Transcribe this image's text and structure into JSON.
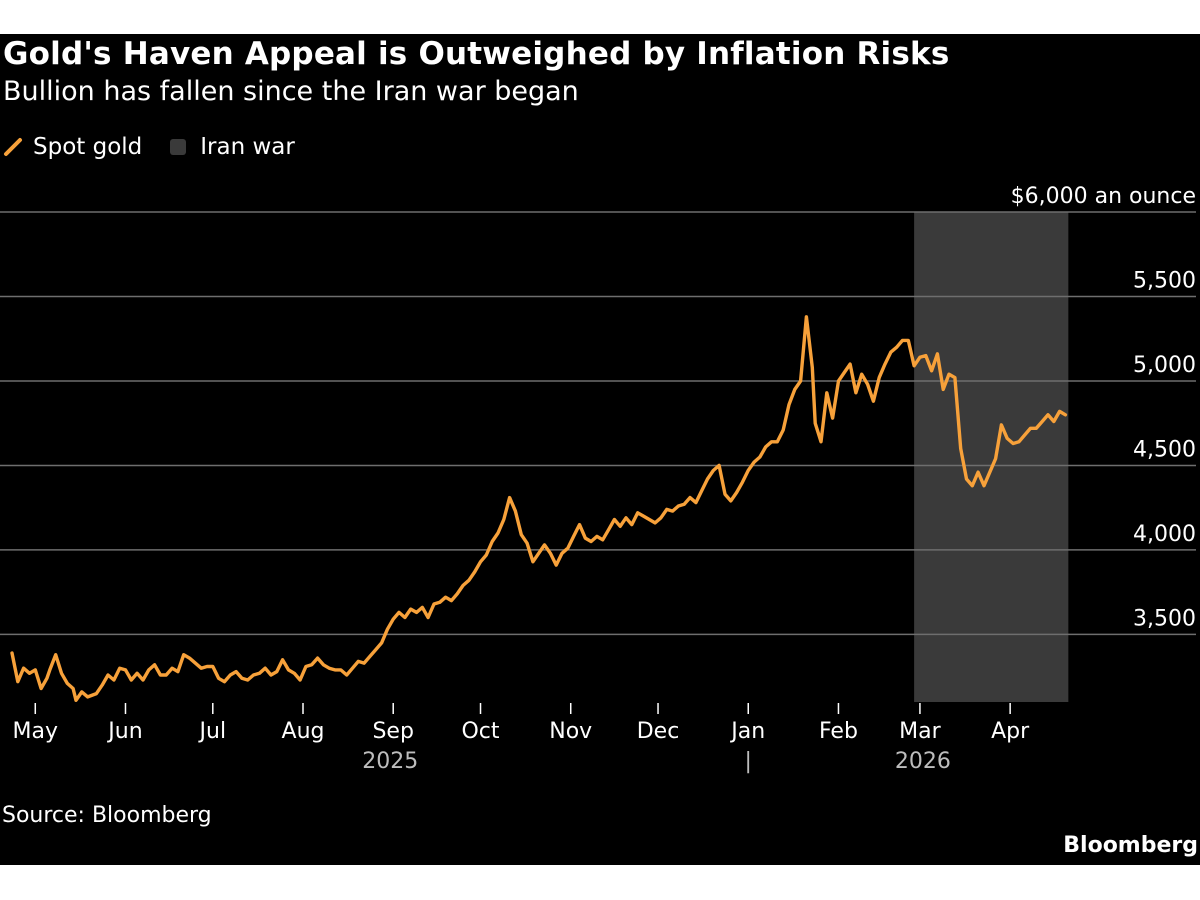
{
  "colors": {
    "background": "#000000",
    "series": "#f7a13a",
    "shade": "#3a3a3a",
    "grid": "#6e6e6e",
    "text": "#ffffff",
    "muted_text": "#bdbdbd"
  },
  "chart_data": {
    "type": "line",
    "title": "Gold's Haven Appeal is Outweighed by Inflation Risks",
    "subtitle": "Bullion has fallen since the Iran war began",
    "xlabel": "",
    "ylabel": "$6,000 an ounce",
    "ylim": [
      3100,
      6000
    ],
    "y_ticks": [
      {
        "value": 3500,
        "label": "3,500"
      },
      {
        "value": 4000,
        "label": "4,000"
      },
      {
        "value": 4500,
        "label": "4,500"
      },
      {
        "value": 5000,
        "label": "5,000"
      },
      {
        "value": 5500,
        "label": "5,500"
      },
      {
        "value": 6000,
        "label": "$6,000 an ounce"
      }
    ],
    "grid": true,
    "legend": {
      "placement": "top-left",
      "entries": [
        {
          "name": "Spot gold",
          "kind": "line"
        },
        {
          "name": "Iran war",
          "kind": "area"
        }
      ]
    },
    "x_domain": [
      -8,
      370
    ],
    "x_ticks": [
      {
        "day": 0,
        "label": "May"
      },
      {
        "day": 31,
        "label": "Jun"
      },
      {
        "day": 61,
        "label": "Jul"
      },
      {
        "day": 92,
        "label": "Aug"
      },
      {
        "day": 123,
        "label": "Sep"
      },
      {
        "day": 153,
        "label": "Oct"
      },
      {
        "day": 184,
        "label": "Nov"
      },
      {
        "day": 214,
        "label": "Dec"
      },
      {
        "day": 245,
        "label": "Jan"
      },
      {
        "day": 276,
        "label": "Feb"
      },
      {
        "day": 304,
        "label": "Mar"
      },
      {
        "day": 335,
        "label": "Apr"
      }
    ],
    "year_labels": [
      {
        "day": 122,
        "label": "2025"
      },
      {
        "day": 245,
        "label": "|"
      },
      {
        "day": 305,
        "label": "2026"
      }
    ],
    "shaded_regions": [
      {
        "name": "Iran war",
        "start_day": 302,
        "end_day": 355
      }
    ],
    "series": [
      {
        "name": "Spot gold",
        "x": [
          -8,
          -6,
          -4,
          -2,
          0,
          2,
          4,
          5,
          7,
          9,
          11,
          13,
          14,
          16,
          18,
          21,
          23,
          25,
          27,
          29,
          31,
          33,
          35,
          37,
          39,
          41,
          43,
          45,
          47,
          49,
          51,
          53,
          55,
          57,
          59,
          61,
          63,
          65,
          67,
          69,
          71,
          73,
          75,
          77,
          79,
          81,
          83,
          85,
          87,
          89,
          91,
          93,
          95,
          97,
          99,
          101,
          103,
          105,
          107,
          109,
          111,
          113,
          115,
          117,
          119,
          121,
          123,
          125,
          127,
          129,
          131,
          133,
          135,
          137,
          139,
          141,
          143,
          145,
          147,
          149,
          151,
          153,
          155,
          157,
          159,
          161,
          163,
          165,
          167,
          169,
          171,
          173,
          175,
          177,
          179,
          181,
          183,
          185,
          187,
          189,
          191,
          193,
          195,
          197,
          199,
          201,
          203,
          205,
          207,
          209,
          211,
          213,
          215,
          217,
          219,
          221,
          223,
          225,
          227,
          229,
          231,
          233,
          235,
          237,
          239,
          241,
          243,
          245,
          247,
          249,
          251,
          253,
          255,
          257,
          259,
          261,
          263,
          265,
          267,
          268,
          270,
          272,
          274,
          276,
          278,
          280,
          282,
          284,
          286,
          288,
          290,
          292,
          294,
          296,
          298,
          300,
          302,
          304,
          306,
          308,
          310,
          312,
          314,
          316,
          318,
          320,
          322,
          324,
          326,
          328,
          330,
          332,
          334,
          336,
          338,
          340,
          342,
          344,
          346,
          348,
          350,
          352,
          354
        ],
        "values": [
          3390,
          3220,
          3300,
          3270,
          3290,
          3180,
          3240,
          3290,
          3380,
          3270,
          3210,
          3180,
          3110,
          3160,
          3130,
          3150,
          3200,
          3260,
          3230,
          3300,
          3290,
          3230,
          3270,
          3230,
          3290,
          3320,
          3260,
          3260,
          3300,
          3280,
          3380,
          3360,
          3330,
          3300,
          3310,
          3310,
          3240,
          3220,
          3260,
          3280,
          3240,
          3230,
          3260,
          3270,
          3300,
          3260,
          3280,
          3350,
          3290,
          3270,
          3230,
          3310,
          3320,
          3360,
          3320,
          3300,
          3290,
          3290,
          3260,
          3300,
          3340,
          3330,
          3370,
          3410,
          3450,
          3530,
          3590,
          3630,
          3600,
          3650,
          3630,
          3660,
          3600,
          3680,
          3690,
          3720,
          3700,
          3740,
          3790,
          3820,
          3870,
          3930,
          3970,
          4050,
          4100,
          4180,
          4310,
          4230,
          4090,
          4040,
          3930,
          3980,
          4030,
          3980,
          3910,
          3980,
          4010,
          4080,
          4150,
          4070,
          4050,
          4080,
          4060,
          4120,
          4180,
          4140,
          4190,
          4150,
          4220,
          4200,
          4180,
          4160,
          4190,
          4240,
          4230,
          4260,
          4270,
          4310,
          4280,
          4350,
          4420,
          4470,
          4500,
          4330,
          4290,
          4340,
          4400,
          4470,
          4520,
          4550,
          4610,
          4640,
          4640,
          4710,
          4860,
          4950,
          5000,
          5380,
          5080,
          4750,
          4640,
          4930,
          4780,
          5000,
          5050,
          5100,
          4930,
          5040,
          4980,
          4880,
          5020,
          5100,
          5170,
          5200,
          5240,
          5240,
          5090,
          5140,
          5150,
          5060,
          5160,
          4950,
          5040,
          5020,
          4600,
          4420,
          4380,
          4460,
          4380,
          4460,
          4540,
          4740,
          4660,
          4630,
          4640,
          4680,
          4720,
          4720,
          4760,
          4800,
          4760,
          4820,
          4800
        ]
      }
    ]
  },
  "source": "Source: Bloomberg",
  "logo": "Bloomberg"
}
